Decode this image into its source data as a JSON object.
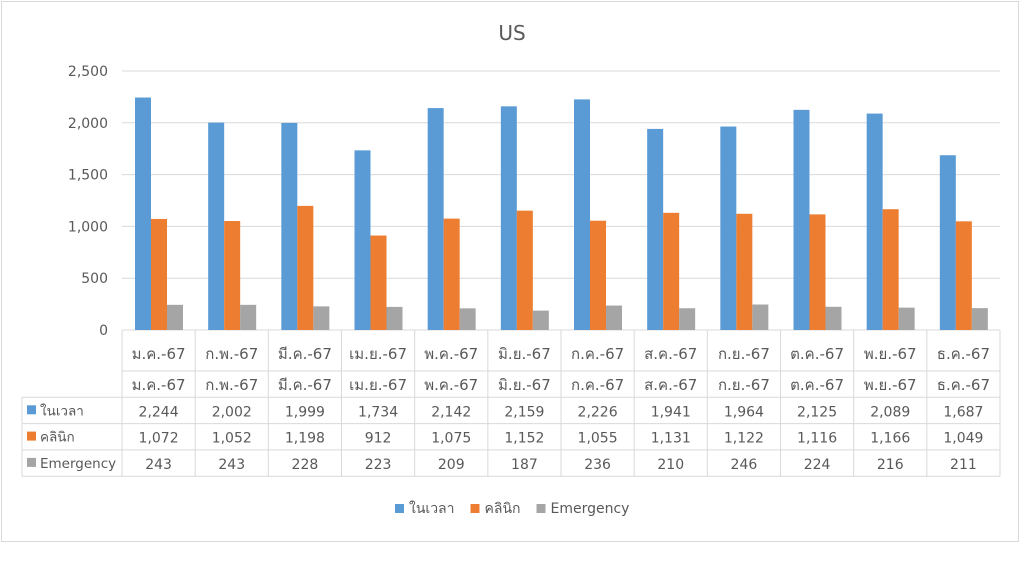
{
  "chart_data": {
    "type": "bar",
    "title": "US",
    "categories": [
      "ม.ค.-67",
      "ก.พ.-67",
      "มี.ค.-67",
      "เม.ย.-67",
      "พ.ค.-67",
      "มิ.ย.-67",
      "ก.ค.-67",
      "ส.ค.-67",
      "ก.ย.-67",
      "ต.ค.-67",
      "พ.ย.-67",
      "ธ.ค.-67"
    ],
    "series": [
      {
        "name": "ในเวลา",
        "color": "#5B9BD5",
        "values": [
          2244,
          2002,
          1999,
          1734,
          2142,
          2159,
          2226,
          1941,
          1964,
          2125,
          2089,
          1687
        ]
      },
      {
        "name": "คลินิก",
        "color": "#ED7D31",
        "values": [
          1072,
          1052,
          1198,
          912,
          1075,
          1152,
          1055,
          1131,
          1122,
          1116,
          1166,
          1049
        ]
      },
      {
        "name": "Emergency",
        "color": "#A5A5A5",
        "values": [
          243,
          243,
          228,
          223,
          209,
          187,
          236,
          210,
          246,
          224,
          216,
          211
        ]
      }
    ],
    "ylim": [
      0,
      2500
    ],
    "yticks": [
      0,
      500,
      1000,
      1500,
      2000,
      2500
    ],
    "ytick_labels": [
      "0",
      "500",
      "1,000",
      "1,500",
      "2,000",
      "2,500"
    ],
    "grid": true,
    "legend": "bottom",
    "data_table": true
  }
}
